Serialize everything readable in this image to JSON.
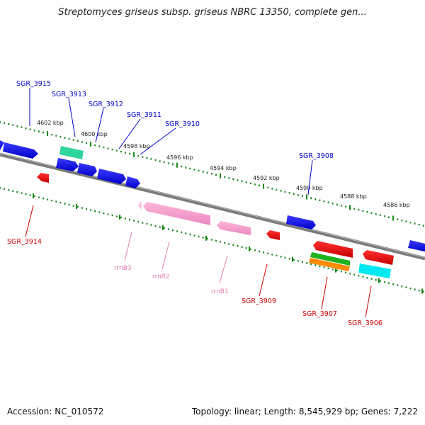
{
  "title": "Streptomyces griseus subsp. griseus NBRC 13350, complete gen...",
  "footer": {
    "accession": "Accession: NC_010572",
    "summary": "Topology: linear; Length: 8,545,929 bp; Genes: 7,222"
  },
  "colors": {
    "backbone": "#7a7a7a",
    "ticks": "#1a8a1a",
    "forward_label": "#0000cc",
    "reverse_label": "#cc0000",
    "rrna_label": "#e57fb4"
  },
  "kbp_labels": [
    "4602 kbp",
    "4600 kbp",
    "4598 kbp",
    "4596 kbp",
    "4594 kbp",
    "4592 kbp",
    "4590 kbp",
    "4588 kbp",
    "4586 kbp"
  ],
  "forward_labels": [
    "SGR_3915",
    "SGR_3913",
    "SGR_3912",
    "SGR_3911",
    "SGR_3910",
    "SGR_3908"
  ],
  "reverse_labels": [
    "SGR_3914",
    "SGR_3909",
    "SGR_3907",
    "SGR_3906"
  ],
  "rrna_labels": [
    "rrnB3",
    "rrnB2",
    "rrnB1"
  ],
  "features": {
    "forward_strand": [
      "blue",
      "teal",
      "blue",
      "blue",
      "blue",
      "blue",
      "blue",
      "blue",
      "blue",
      "blue"
    ],
    "reverse_strand": [
      "red",
      "pink",
      "pink",
      "pink",
      "red",
      "red",
      "green",
      "orange",
      "red",
      "cyan"
    ]
  }
}
